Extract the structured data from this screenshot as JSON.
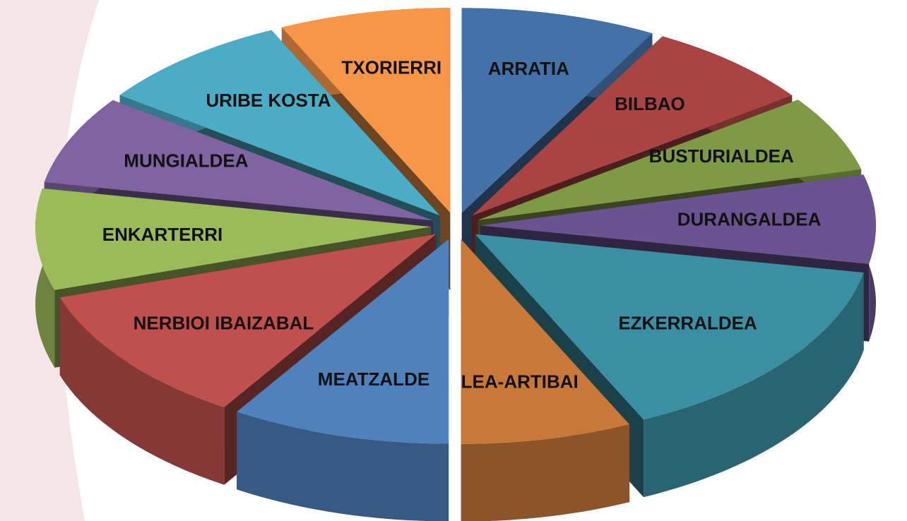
{
  "chart_data": {
    "type": "pie3d",
    "categories": [
      "ARRATIA",
      "BILBAO",
      "BUSTURIALDEA",
      "DURANGALDEA",
      "EZKERRALDEA",
      "LEA-ARTIBAI",
      "MEATZALDE",
      "NERBIOI IBAIZABAL",
      "ENKARTERRI",
      "MUNGIALDEA",
      "URIBE KOSTA",
      "TXORIERRI"
    ],
    "values": [
      8,
      7,
      6,
      7,
      15,
      7,
      9,
      11,
      8,
      7,
      8,
      7
    ],
    "colors": [
      "#4472a8",
      "#a94442",
      "#7f9a45",
      "#6a5391",
      "#3a8fa3",
      "#c8793a",
      "#4f81bd",
      "#c0504d",
      "#9bbb59",
      "#8064a2",
      "#4bacc6",
      "#f79646"
    ]
  }
}
